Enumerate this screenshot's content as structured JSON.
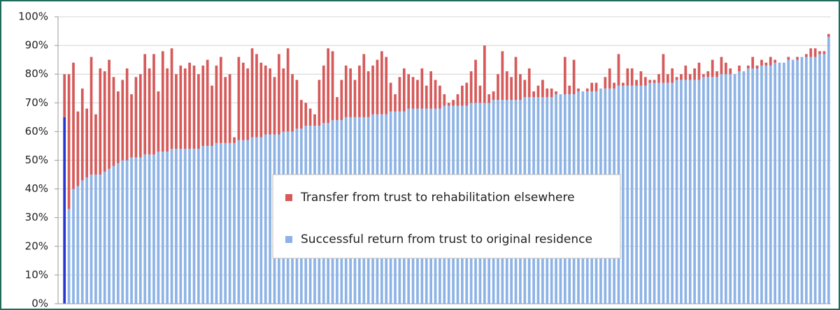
{
  "chart_data": {
    "type": "stacked_bar",
    "categories": [
      null,
      null,
      null,
      null,
      null,
      null,
      null,
      null,
      null,
      null,
      null,
      null,
      null,
      null,
      null,
      null,
      null,
      null,
      null,
      null,
      null,
      null,
      null,
      null,
      null,
      null,
      null,
      null,
      null,
      null,
      null,
      null,
      null,
      null,
      null,
      null,
      null,
      null,
      null,
      null,
      null,
      null,
      null,
      null,
      null,
      null,
      null,
      null,
      null,
      null,
      null,
      null,
      null,
      null,
      null,
      null,
      null,
      null,
      null,
      null,
      null,
      null,
      null,
      null,
      null,
      null,
      null,
      null,
      null,
      null,
      null,
      null,
      null,
      null,
      null,
      null,
      null,
      null,
      null,
      null,
      null,
      null,
      null,
      null,
      null,
      null,
      null,
      null,
      null,
      null,
      null,
      null,
      null,
      null,
      null,
      null,
      null,
      null,
      null,
      null,
      null,
      null,
      null,
      null,
      null,
      null,
      null,
      null,
      null,
      null,
      null,
      null,
      null,
      null,
      null,
      null,
      null,
      null,
      null,
      null,
      null,
      null,
      null,
      null,
      null,
      null,
      null,
      null,
      null,
      null,
      null,
      null,
      null,
      null,
      null,
      null,
      null,
      null,
      null,
      null,
      null,
      null,
      null,
      null,
      null,
      null,
      null,
      null,
      null,
      null,
      null,
      null,
      null,
      null,
      null,
      null,
      null,
      null,
      null,
      null,
      null,
      null,
      null,
      null,
      null,
      null,
      null,
      null,
      null,
      null,
      null,
      null
    ],
    "series": [
      {
        "name": "Successful return from trust to original residence",
        "color": "#8db3e6",
        "values": [
          65,
          33,
          40,
          41,
          43,
          44,
          45,
          45,
          45,
          46,
          47,
          48,
          49,
          50,
          50,
          51,
          51,
          51,
          52,
          52,
          52,
          53,
          53,
          53,
          54,
          54,
          54,
          54,
          54,
          54,
          54,
          55,
          55,
          55,
          56,
          56,
          56,
          56,
          56,
          57,
          57,
          57,
          58,
          58,
          58,
          59,
          59,
          59,
          59,
          60,
          60,
          60,
          61,
          61,
          62,
          62,
          62,
          62,
          63,
          63,
          64,
          64,
          64,
          65,
          65,
          65,
          65,
          65,
          65,
          66,
          66,
          66,
          66,
          67,
          67,
          67,
          67,
          68,
          68,
          68,
          68,
          68,
          68,
          68,
          68,
          69,
          69,
          69,
          69,
          69,
          69,
          70,
          70,
          70,
          70,
          70,
          71,
          71,
          71,
          71,
          71,
          71,
          71,
          72,
          72,
          72,
          72,
          72,
          72,
          72,
          73,
          73,
          73,
          73,
          73,
          74,
          74,
          74,
          74,
          74,
          75,
          75,
          75,
          75,
          76,
          76,
          76,
          76,
          76,
          76,
          76,
          77,
          77,
          77,
          77,
          77,
          77,
          78,
          78,
          78,
          78,
          78,
          78,
          79,
          79,
          79,
          79,
          80,
          80,
          80,
          80,
          81,
          81,
          82,
          82,
          82,
          83,
          83,
          83,
          84,
          84,
          84,
          85,
          85,
          85,
          86,
          86,
          86,
          86,
          87,
          87,
          93
        ]
      },
      {
        "name": "Transfer from trust to rehabilitation elsewhere",
        "color": "#d65a5a",
        "values": [
          15,
          47,
          44,
          26,
          32,
          24,
          41,
          21,
          37,
          35,
          38,
          31,
          25,
          28,
          32,
          22,
          28,
          29,
          35,
          30,
          35,
          21,
          35,
          29,
          35,
          26,
          29,
          28,
          30,
          29,
          26,
          28,
          30,
          21,
          27,
          30,
          23,
          24,
          2,
          29,
          27,
          25,
          31,
          29,
          26,
          24,
          23,
          20,
          28,
          22,
          29,
          20,
          17,
          10,
          8,
          6,
          4,
          16,
          20,
          26,
          24,
          8,
          14,
          18,
          17,
          13,
          18,
          22,
          16,
          17,
          19,
          22,
          20,
          10,
          6,
          12,
          15,
          12,
          11,
          10,
          14,
          8,
          13,
          10,
          8,
          4,
          1,
          2,
          4,
          7,
          8,
          11,
          15,
          6,
          20,
          3,
          3,
          9,
          17,
          10,
          8,
          15,
          9,
          6,
          10,
          2,
          4,
          6,
          3,
          3,
          1,
          0,
          13,
          3,
          12,
          1,
          0,
          1,
          3,
          3,
          0,
          4,
          7,
          2,
          11,
          1,
          6,
          6,
          2,
          5,
          3,
          1,
          1,
          3,
          10,
          3,
          5,
          1,
          2,
          5,
          2,
          4,
          6,
          1,
          2,
          6,
          2,
          6,
          4,
          2,
          0,
          2,
          0,
          1,
          4,
          1,
          2,
          1,
          3,
          1,
          0,
          0,
          1,
          0,
          1,
          0,
          1,
          3,
          3,
          1,
          1,
          1
        ]
      }
    ],
    "highlight_bars": [
      0
    ],
    "highlight_color": "#2a36d0",
    "ylim": [
      0,
      100
    ],
    "yticks": [
      {
        "value": 0,
        "label": "0%"
      },
      {
        "value": 10,
        "label": "10%"
      },
      {
        "value": 20,
        "label": "20%"
      },
      {
        "value": 30,
        "label": "30%"
      },
      {
        "value": 40,
        "label": "40%"
      },
      {
        "value": 50,
        "label": "50%"
      },
      {
        "value": 60,
        "label": "60%"
      },
      {
        "value": 70,
        "label": "70%"
      },
      {
        "value": 80,
        "label": "80%"
      },
      {
        "value": 90,
        "label": "90%"
      },
      {
        "value": 100,
        "label": "100%"
      }
    ],
    "grid": true,
    "legend": "center"
  }
}
